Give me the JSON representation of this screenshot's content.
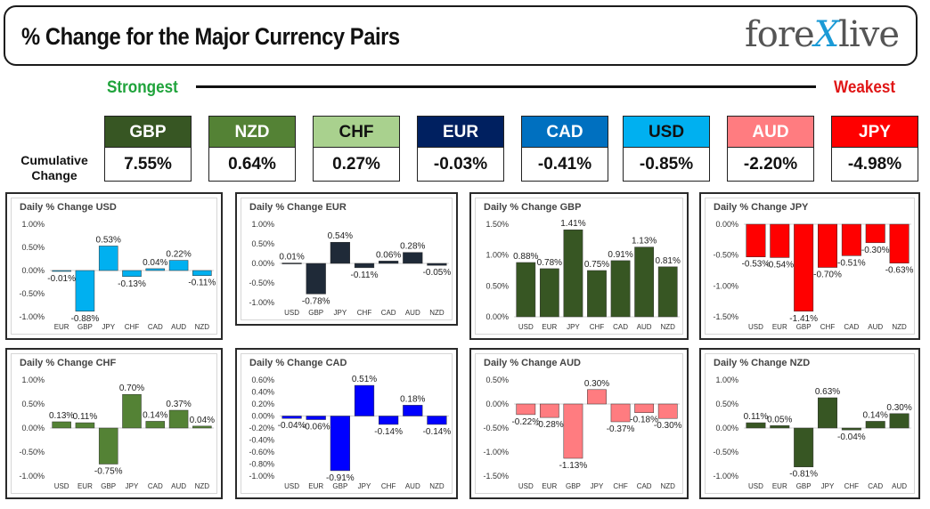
{
  "header": {
    "title": "% Change for the Major Currency Pairs",
    "logo_text_a": "fore",
    "logo_text_x": "X",
    "logo_text_b": "live"
  },
  "scale": {
    "strongest": "Strongest",
    "weakest": "Weakest"
  },
  "cumulative_label_line1": "Cumulative",
  "cumulative_label_line2": "Change",
  "currencies": [
    {
      "code": "GBP",
      "value": "7.55%",
      "color": "#375623",
      "text_color": "#ffffff"
    },
    {
      "code": "NZD",
      "value": "0.64%",
      "color": "#548235",
      "text_color": "#ffffff"
    },
    {
      "code": "CHF",
      "value": "0.27%",
      "color": "#a9d18e",
      "text_color": "#111111"
    },
    {
      "code": "EUR",
      "value": "-0.03%",
      "color": "#002060",
      "text_color": "#ffffff"
    },
    {
      "code": "CAD",
      "value": "-0.41%",
      "color": "#0070c0",
      "text_color": "#ffffff"
    },
    {
      "code": "USD",
      "value": "-0.85%",
      "color": "#00b0f0",
      "text_color": "#111111"
    },
    {
      "code": "AUD",
      "value": "-2.20%",
      "color": "#ff7c80",
      "text_color": "#ffffff"
    },
    {
      "code": "JPY",
      "value": "-4.98%",
      "color": "#ff0000",
      "text_color": "#ffffff"
    }
  ],
  "chart_data": [
    {
      "type": "bar",
      "title": "Daily % Change USD",
      "categories": [
        "EUR",
        "GBP",
        "JPY",
        "CHF",
        "CAD",
        "AUD",
        "NZD"
      ],
      "values": [
        -0.01,
        -0.88,
        0.53,
        -0.13,
        0.04,
        0.22,
        -0.11
      ],
      "labels": [
        "-0.01%",
        "-0.88%",
        "0.53%",
        "-0.13%",
        "0.04%",
        "0.22%",
        "-0.11%"
      ],
      "ylim": [
        -1.0,
        1.0
      ],
      "yticks": [
        1.0,
        0.5,
        0.0,
        -0.5,
        -1.0
      ],
      "ytick_labels": [
        "1.00%",
        "0.50%",
        "0.00%",
        "-0.50%",
        "-1.00%"
      ],
      "bar_color": "#00b0f0"
    },
    {
      "type": "bar",
      "title": "Daily % Change EUR",
      "categories": [
        "USD",
        "GBP",
        "JPY",
        "CHF",
        "CAD",
        "AUD",
        "NZD"
      ],
      "values": [
        0.01,
        -0.78,
        0.54,
        -0.11,
        0.06,
        0.28,
        -0.05
      ],
      "labels": [
        "0.01%",
        "-0.78%",
        "0.54%",
        "-0.11%",
        "0.06%",
        "0.28%",
        "-0.05%"
      ],
      "ylim": [
        -1.0,
        1.0
      ],
      "yticks": [
        1.0,
        0.5,
        0.0,
        -0.5,
        -1.0
      ],
      "ytick_labels": [
        "1.00%",
        "0.50%",
        "0.00%",
        "-0.50%",
        "-1.00%"
      ],
      "bar_color": "#1f2a38"
    },
    {
      "type": "bar",
      "title": "Daily % Change GBP",
      "categories": [
        "USD",
        "EUR",
        "JPY",
        "CHF",
        "CAD",
        "AUD",
        "NZD"
      ],
      "values": [
        0.88,
        0.78,
        1.41,
        0.75,
        0.91,
        1.13,
        0.81
      ],
      "labels": [
        "0.88%",
        "0.78%",
        "1.41%",
        "0.75%",
        "0.91%",
        "1.13%",
        "0.81%"
      ],
      "ylim": [
        0.0,
        1.5
      ],
      "yticks": [
        1.5,
        1.0,
        0.5,
        0.0
      ],
      "ytick_labels": [
        "1.50%",
        "1.00%",
        "0.50%",
        "0.00%"
      ],
      "bar_color": "#375623"
    },
    {
      "type": "bar",
      "title": "Daily % Change JPY",
      "categories": [
        "USD",
        "EUR",
        "GBP",
        "CHF",
        "CAD",
        "AUD",
        "NZD"
      ],
      "values": [
        -0.53,
        -0.54,
        -1.41,
        -0.7,
        -0.51,
        -0.3,
        -0.63
      ],
      "labels": [
        "-0.53%",
        "-0.54%",
        "-1.41%",
        "-0.70%",
        "-0.51%",
        "-0.30%",
        "-0.63%"
      ],
      "ylim": [
        -1.5,
        0.0
      ],
      "yticks": [
        0.0,
        -0.5,
        -1.0,
        -1.5
      ],
      "ytick_labels": [
        "0.00%",
        "-0.50%",
        "-1.00%",
        "-1.50%"
      ],
      "bar_color": "#ff0000"
    },
    {
      "type": "bar",
      "title": "Daily % Change CHF",
      "categories": [
        "USD",
        "EUR",
        "GBP",
        "JPY",
        "CAD",
        "AUD",
        "NZD"
      ],
      "values": [
        0.13,
        0.11,
        -0.75,
        0.7,
        0.14,
        0.37,
        0.04
      ],
      "labels": [
        "0.13%",
        "0.11%",
        "-0.75%",
        "0.70%",
        "0.14%",
        "0.37%",
        "0.04%"
      ],
      "ylim": [
        -1.0,
        1.0
      ],
      "yticks": [
        1.0,
        0.5,
        0.0,
        -0.5,
        -1.0
      ],
      "ytick_labels": [
        "1.00%",
        "0.50%",
        "0.00%",
        "-0.50%",
        "-1.00%"
      ],
      "bar_color": "#548235"
    },
    {
      "type": "bar",
      "title": "Daily % Change CAD",
      "categories": [
        "USD",
        "EUR",
        "GBP",
        "JPY",
        "CHF",
        "AUD",
        "NZD"
      ],
      "values": [
        -0.04,
        -0.06,
        -0.91,
        0.51,
        -0.14,
        0.18,
        -0.14
      ],
      "labels": [
        "-0.04%",
        "-0.06%",
        "-0.91%",
        "0.51%",
        "-0.14%",
        "0.18%",
        "-0.14%"
      ],
      "ylim": [
        -1.0,
        0.6
      ],
      "yticks": [
        0.6,
        0.4,
        0.2,
        0.0,
        -0.2,
        -0.4,
        -0.6,
        -0.8,
        -1.0
      ],
      "ytick_labels": [
        "0.60%",
        "0.40%",
        "0.20%",
        "0.00%",
        "-0.20%",
        "-0.40%",
        "-0.60%",
        "-0.80%",
        "-1.00%"
      ],
      "bar_color": "#0000ff"
    },
    {
      "type": "bar",
      "title": "Daily % Change AUD",
      "categories": [
        "USD",
        "EUR",
        "GBP",
        "JPY",
        "CHF",
        "CAD",
        "NZD"
      ],
      "values": [
        -0.22,
        -0.28,
        -1.13,
        0.3,
        -0.37,
        -0.18,
        -0.3
      ],
      "labels": [
        "-0.22%",
        "-0.28%",
        "-1.13%",
        "0.30%",
        "-0.37%",
        "-0.18%",
        "-0.30%"
      ],
      "ylim": [
        -1.5,
        0.5
      ],
      "yticks": [
        0.5,
        0.0,
        -0.5,
        -1.0,
        -1.5
      ],
      "ytick_labels": [
        "0.50%",
        "0.00%",
        "-0.50%",
        "-1.00%",
        "-1.50%"
      ],
      "bar_color": "#ff7c80"
    },
    {
      "type": "bar",
      "title": "Daily % Change NZD",
      "categories": [
        "USD",
        "EUR",
        "GBP",
        "JPY",
        "CHF",
        "CAD",
        "AUD"
      ],
      "values": [
        0.11,
        0.05,
        -0.81,
        0.63,
        -0.04,
        0.14,
        0.3
      ],
      "labels": [
        "0.11%",
        "0.05%",
        "-0.81%",
        "0.63%",
        "-0.04%",
        "0.14%",
        "0.30%"
      ],
      "ylim": [
        -1.0,
        1.0
      ],
      "yticks": [
        1.0,
        0.5,
        0.0,
        -0.5,
        -1.0
      ],
      "ytick_labels": [
        "1.00%",
        "0.50%",
        "0.00%",
        "-0.50%",
        "-1.00%"
      ],
      "bar_color": "#375623"
    }
  ]
}
